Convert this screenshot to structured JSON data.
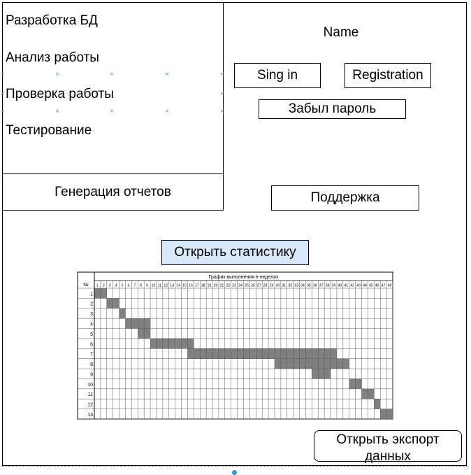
{
  "menu": {
    "items": [
      {
        "label": "Разработка БД"
      },
      {
        "label": "Анализ работы"
      },
      {
        "label": "Проверка работы"
      },
      {
        "label": "Тестирование"
      }
    ],
    "report_label": "Генерация отчетов"
  },
  "auth": {
    "name_label": "Name",
    "sign_in_label": "Sing in",
    "registration_label": "Registration",
    "forgot_label": "Забыл пароль"
  },
  "support_label": "Поддержка",
  "stats_button_label": "Открыть статистику",
  "export_button_label": "Открыть экспорт данных",
  "colors": {
    "stats_button_fill": "#dae8fc",
    "bar_fill": "#808080",
    "selection_marker": "#4a9ee0"
  },
  "chart_data": {
    "type": "table",
    "title": "График выполнения в неделях",
    "row_header": "№",
    "weeks": [
      1,
      2,
      3,
      4,
      5,
      6,
      7,
      8,
      9,
      10,
      11,
      12,
      13,
      14,
      15,
      16,
      17,
      18,
      19,
      20,
      21,
      22,
      23,
      24,
      25,
      26,
      27,
      28,
      29,
      30,
      31,
      32,
      33,
      34,
      35,
      36,
      37,
      38,
      39,
      40,
      41,
      42,
      43,
      44,
      45,
      46,
      47,
      48
    ],
    "tasks": [
      {
        "row": "1",
        "segments": [
          [
            1,
            2
          ]
        ]
      },
      {
        "row": "2",
        "segments": [
          [
            3,
            4
          ]
        ]
      },
      {
        "row": "3",
        "segments": [
          [
            5,
            5
          ]
        ]
      },
      {
        "row": "4",
        "segments": [
          [
            6,
            9
          ]
        ]
      },
      {
        "row": "5",
        "segments": [
          [
            8,
            9
          ]
        ]
      },
      {
        "row": "6",
        "segments": [
          [
            10,
            16
          ]
        ]
      },
      {
        "row": "7",
        "segments": [
          [
            16,
            39
          ]
        ]
      },
      {
        "row": "8",
        "segments": [
          [
            30,
            41
          ]
        ]
      },
      {
        "row": "9",
        "segments": [
          [
            36,
            38
          ]
        ]
      },
      {
        "row": "10",
        "segments": [
          [
            42,
            43
          ]
        ]
      },
      {
        "row": "11",
        "segments": [
          [
            44,
            45
          ]
        ]
      },
      {
        "row": "12",
        "segments": [
          [
            46,
            46
          ]
        ]
      },
      {
        "row": "13",
        "segments": [
          [
            47,
            48
          ]
        ]
      }
    ]
  }
}
